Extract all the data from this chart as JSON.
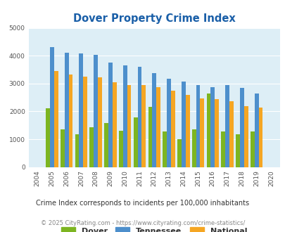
{
  "title": "Dover Property Crime Index",
  "years": [
    "2004",
    "2005",
    "2006",
    "2007",
    "2008",
    "2009",
    "2010",
    "2011",
    "2012",
    "2013",
    "2014",
    "2015",
    "2016",
    "2017",
    "2018",
    "2019",
    "2020"
  ],
  "dover": [
    0,
    2100,
    1350,
    1180,
    1430,
    1570,
    1310,
    1780,
    2150,
    1290,
    1000,
    1350,
    2650,
    1290,
    1170,
    1270,
    0
  ],
  "tennessee": [
    0,
    4310,
    4100,
    4080,
    4040,
    3760,
    3660,
    3590,
    3370,
    3180,
    3060,
    2950,
    2870,
    2940,
    2840,
    2630,
    0
  ],
  "national": [
    0,
    3440,
    3330,
    3240,
    3210,
    3050,
    2950,
    2940,
    2880,
    2730,
    2590,
    2470,
    2440,
    2360,
    2190,
    2140,
    0
  ],
  "dover_color": "#7db521",
  "tennessee_color": "#4d8fcc",
  "national_color": "#f5a623",
  "bg_color": "#ddeef6",
  "ylim": [
    0,
    5000
  ],
  "yticks": [
    0,
    1000,
    2000,
    3000,
    4000,
    5000
  ],
  "subtitle": "Crime Index corresponds to incidents per 100,000 inhabitants",
  "footer": "© 2025 CityRating.com - https://www.cityrating.com/crime-statistics/",
  "title_color": "#1a5fa8",
  "subtitle_color": "#333333",
  "footer_color": "#888888"
}
